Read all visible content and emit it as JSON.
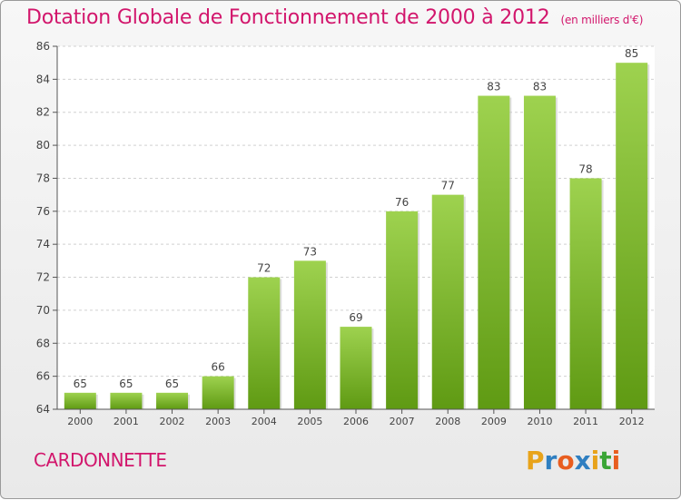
{
  "title": "Dotation Globale de Fonctionnement de 2000 à 2012",
  "unit_note": "(en milliers d'€)",
  "commune": "CARDONNETTE",
  "logo_letters": [
    "P",
    "r",
    "o",
    "x",
    "i",
    "t",
    "i"
  ],
  "logo_colors": [
    "#e8a31a",
    "#2f7fc1",
    "#e85d1f",
    "#2f7fc1",
    "#e8a31a",
    "#3aa535",
    "#e85d1f"
  ],
  "colors": {
    "title": "#d2166c",
    "bar_top": "#9ed24f",
    "bar_bottom": "#5f9a13",
    "grid": "#d0d0d0",
    "axis": "#555555"
  },
  "chart_data": {
    "type": "bar",
    "categories": [
      "2000",
      "2001",
      "2002",
      "2003",
      "2004",
      "2005",
      "2006",
      "2007",
      "2008",
      "2009",
      "2010",
      "2011",
      "2012"
    ],
    "values": [
      65,
      65,
      65,
      66,
      72,
      73,
      69,
      76,
      77,
      83,
      83,
      78,
      85
    ],
    "ylim": [
      64,
      86
    ],
    "yticks": [
      64,
      66,
      68,
      70,
      72,
      74,
      76,
      78,
      80,
      82,
      84,
      86
    ],
    "grid": true,
    "xlabel": "",
    "ylabel": ""
  }
}
